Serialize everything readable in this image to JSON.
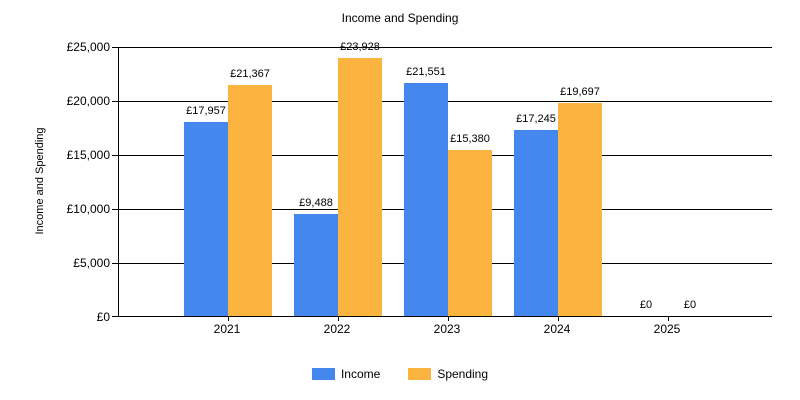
{
  "title": "Income and Spending",
  "y_axis_title": "Income and Spending",
  "chart_data": {
    "type": "bar",
    "title": "Income and Spending",
    "categories": [
      "2021",
      "2022",
      "2023",
      "2024",
      "2025"
    ],
    "series": [
      {
        "name": "Income",
        "color": "#4488EF",
        "values": [
          17957,
          9488,
          21551,
          17245,
          0
        ],
        "labels": [
          "£17,957",
          "£9,488",
          "£21,551",
          "£17,245",
          "£0"
        ]
      },
      {
        "name": "Spending",
        "color": "#FBB440",
        "values": [
          21367,
          23928,
          15380,
          19697,
          0
        ],
        "labels": [
          "£21,367",
          "£23,928",
          "£15,380",
          "£19,697",
          "£0"
        ]
      }
    ],
    "xlabel": "",
    "ylabel": "Income and Spending",
    "ylim": [
      0,
      25000
    ],
    "y_ticks": [
      {
        "value": 25000,
        "label": "£25,000"
      },
      {
        "value": 20000,
        "label": "£20,000"
      },
      {
        "value": 15000,
        "label": "£15,000"
      },
      {
        "value": 10000,
        "label": "£10,000"
      },
      {
        "value": 5000,
        "label": "£5,000"
      },
      {
        "value": 0,
        "label": "£0"
      }
    ],
    "grid": true,
    "legend_position": "bottom"
  }
}
